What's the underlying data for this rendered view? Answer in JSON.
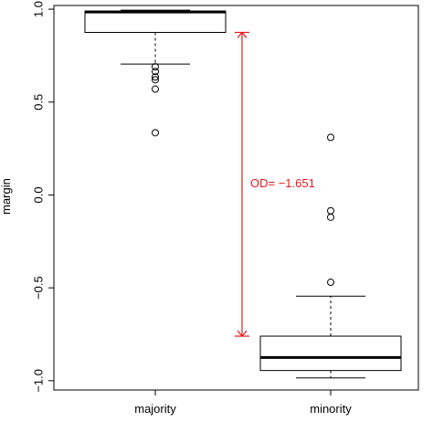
{
  "chart_data": {
    "type": "boxplot",
    "ylabel": "margin",
    "ylim": [
      -1.05,
      1.02
    ],
    "y_ticks": [
      {
        "value": -1.0,
        "label": "−1.0"
      },
      {
        "value": -0.5,
        "label": "−0.5"
      },
      {
        "value": 0.0,
        "label": "0.0"
      },
      {
        "value": 0.5,
        "label": "0.5"
      },
      {
        "value": 1.0,
        "label": "1.0"
      }
    ],
    "categories": [
      "majority",
      "minority"
    ],
    "boxes": [
      {
        "name": "majority",
        "whisker_low": 0.705,
        "q1": 0.875,
        "median": 0.985,
        "q3": 0.99,
        "whisker_high": 0.995,
        "outliers": [
          0.69,
          0.665,
          0.635,
          0.62,
          0.57,
          0.335
        ]
      },
      {
        "name": "minority",
        "whisker_low": -0.985,
        "q1": -0.945,
        "median": -0.875,
        "q3": -0.76,
        "whisker_high": -0.545,
        "outliers": [
          -0.47,
          -0.12,
          -0.085,
          0.31
        ]
      }
    ],
    "annotation": {
      "text": "OD= −1.651",
      "y_top": 0.875,
      "y_bottom": -0.76,
      "color": "#e41a1c"
    }
  }
}
